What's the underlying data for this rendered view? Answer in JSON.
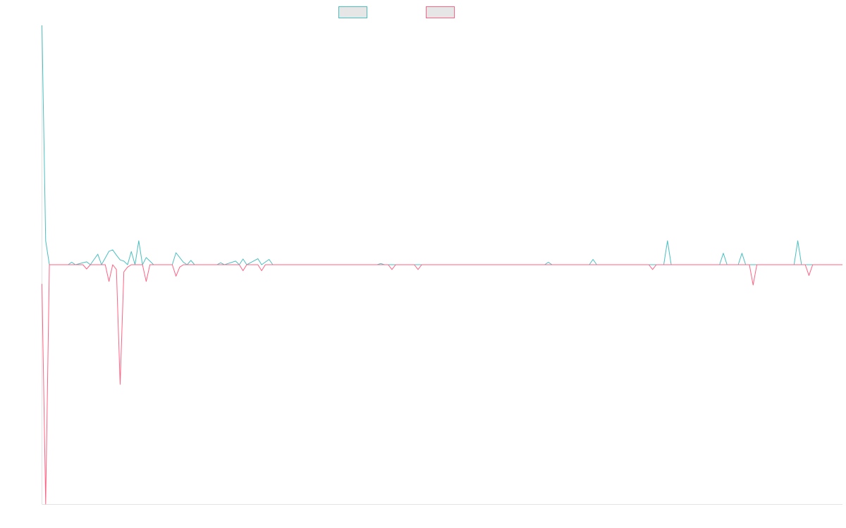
{
  "chart_data": {
    "type": "line",
    "title": "",
    "xlabel": "",
    "ylabel": "",
    "grid": false,
    "legend_position": "top-center",
    "ylim": [
      -1000,
      1000
    ],
    "x_count": 216,
    "series": [
      {
        "color": "#4bc0c0",
        "points": [
          [
            0,
            1000
          ],
          [
            1,
            100
          ],
          [
            2,
            0
          ],
          [
            7,
            0
          ],
          [
            8,
            10
          ],
          [
            9,
            0
          ],
          [
            12,
            12
          ],
          [
            13,
            0
          ],
          [
            15,
            44
          ],
          [
            16,
            0
          ],
          [
            18,
            56
          ],
          [
            19,
            62
          ],
          [
            20,
            40
          ],
          [
            21,
            20
          ],
          [
            22,
            15
          ],
          [
            23,
            0
          ],
          [
            24,
            55
          ],
          [
            25,
            0
          ],
          [
            26,
            100
          ],
          [
            27,
            0
          ],
          [
            28,
            30
          ],
          [
            29,
            15
          ],
          [
            30,
            0
          ],
          [
            35,
            0
          ],
          [
            36,
            50
          ],
          [
            37,
            30
          ],
          [
            38,
            10
          ],
          [
            39,
            0
          ],
          [
            40,
            18
          ],
          [
            41,
            0
          ],
          [
            47,
            0
          ],
          [
            48,
            8
          ],
          [
            49,
            0
          ],
          [
            52,
            15
          ],
          [
            53,
            0
          ],
          [
            54,
            24
          ],
          [
            55,
            0
          ],
          [
            58,
            25
          ],
          [
            59,
            0
          ],
          [
            61,
            22
          ],
          [
            62,
            0
          ],
          [
            90,
            0
          ],
          [
            91,
            5
          ],
          [
            92,
            0
          ],
          [
            135,
            0
          ],
          [
            136,
            10
          ],
          [
            137,
            0
          ],
          [
            147,
            0
          ],
          [
            148,
            22
          ],
          [
            149,
            0
          ],
          [
            167,
            0
          ],
          [
            168,
            100
          ],
          [
            169,
            0
          ],
          [
            182,
            0
          ],
          [
            183,
            48
          ],
          [
            184,
            0
          ],
          [
            187,
            0
          ],
          [
            188,
            48
          ],
          [
            189,
            0
          ],
          [
            202,
            0
          ],
          [
            203,
            100
          ],
          [
            204,
            0
          ],
          [
            215,
            0
          ]
        ]
      },
      {
        "color": "#ff6384",
        "points": [
          [
            0,
            -80
          ],
          [
            1,
            -1000
          ],
          [
            2,
            0
          ],
          [
            11,
            0
          ],
          [
            12,
            -18
          ],
          [
            13,
            0
          ],
          [
            17,
            0
          ],
          [
            18,
            -70
          ],
          [
            19,
            0
          ],
          [
            20,
            -20
          ],
          [
            21,
            -500
          ],
          [
            22,
            -30
          ],
          [
            23,
            -10
          ],
          [
            24,
            0
          ],
          [
            27,
            0
          ],
          [
            28,
            -70
          ],
          [
            29,
            0
          ],
          [
            35,
            0
          ],
          [
            36,
            -48
          ],
          [
            37,
            -10
          ],
          [
            38,
            0
          ],
          [
            53,
            0
          ],
          [
            54,
            -25
          ],
          [
            55,
            0
          ],
          [
            58,
            0
          ],
          [
            59,
            -25
          ],
          [
            60,
            0
          ],
          [
            93,
            0
          ],
          [
            94,
            -20
          ],
          [
            95,
            0
          ],
          [
            100,
            0
          ],
          [
            101,
            -20
          ],
          [
            102,
            0
          ],
          [
            163,
            0
          ],
          [
            164,
            -20
          ],
          [
            165,
            0
          ],
          [
            190,
            0
          ],
          [
            191,
            -85
          ],
          [
            192,
            0
          ],
          [
            205,
            0
          ],
          [
            206,
            -45
          ],
          [
            207,
            0
          ],
          [
            215,
            0
          ]
        ]
      }
    ]
  }
}
